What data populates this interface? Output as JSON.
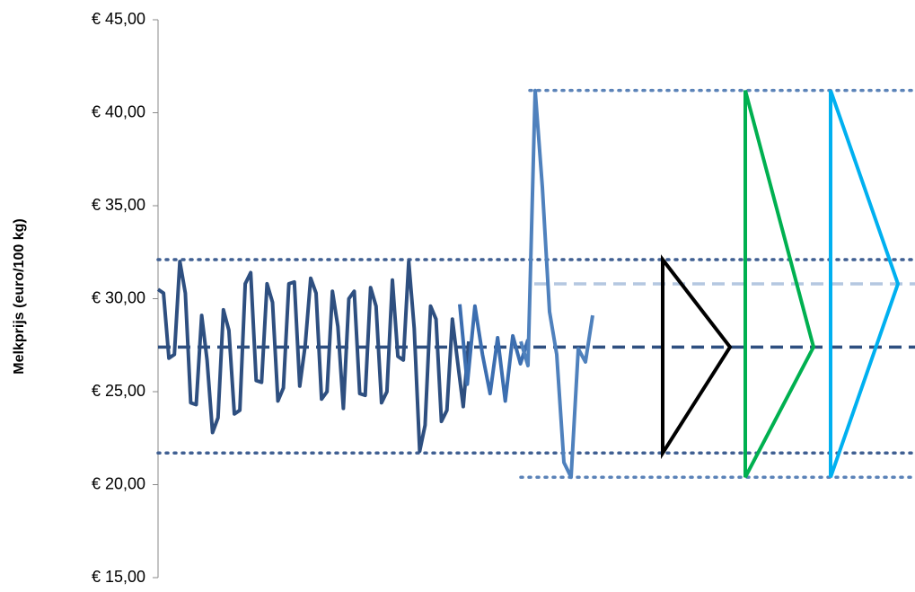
{
  "chart_data": {
    "type": "line",
    "y_label": "Melkprijs (euro/100 kg)",
    "ylim": [
      15,
      45
    ],
    "yticks": [
      {
        "value": 15,
        "label": "€ 15,00"
      },
      {
        "value": 20,
        "label": "€ 20,00"
      },
      {
        "value": 25,
        "label": "€ 25,00"
      },
      {
        "value": 30,
        "label": "€ 30,00"
      },
      {
        "value": 35,
        "label": "€ 35,00"
      },
      {
        "value": 40,
        "label": "€ 40,00"
      },
      {
        "value": 45,
        "label": "€ 45,00"
      }
    ],
    "series": [
      {
        "color": "#2e4f80",
        "values": [
          30.5,
          30.3,
          26.8,
          27.0,
          32.0,
          30.3,
          24.4,
          24.3,
          29.1,
          26.7,
          22.8,
          23.6,
          29.4,
          28.3,
          23.8,
          24.0,
          30.8,
          31.4,
          25.6,
          25.5,
          30.8,
          29.8,
          24.5,
          25.2,
          30.8,
          30.9,
          25.3,
          27.5,
          31.1,
          30.3,
          24.6,
          25.0,
          30.4,
          28.5,
          24.1,
          30.0,
          30.4,
          24.9,
          24.8,
          30.6,
          29.6,
          24.4,
          25.0,
          31.0,
          26.9,
          26.7,
          32.0,
          28.4,
          21.8,
          23.2,
          29.6,
          28.9,
          23.4,
          24.0,
          28.9,
          26.5,
          24.2,
          27.7
        ]
      },
      {
        "color": "#3c6eb0",
        "values": [
          29.7,
          25.4,
          29.6,
          27.0,
          24.9,
          27.9,
          24.5,
          28.0,
          26.5,
          27.8
        ]
      },
      {
        "color": "#4f81bd",
        "values": [
          27.7,
          26.4,
          41.2,
          36.0,
          29.3,
          27.0,
          21.2,
          20.4,
          27.3,
          26.6,
          29.1
        ]
      }
    ],
    "reference_lines": [
      {
        "value": 32.1,
        "color": "#3f5f92",
        "style": "dotted"
      },
      {
        "value": 27.4,
        "color": "#2e4f80",
        "style": "dashed"
      },
      {
        "value": 21.7,
        "color": "#3f5f92",
        "style": "dotted"
      },
      {
        "value": 41.2,
        "color": "#5b83b8",
        "style": "dotted"
      },
      {
        "value": 20.4,
        "color": "#5b83b8",
        "style": "dotted"
      },
      {
        "value": 30.8,
        "color": "#b4c7e0",
        "style": "dashed"
      }
    ],
    "triangles": [
      {
        "color": "#000000",
        "values": [
          32.1,
          27.4,
          21.7
        ]
      },
      {
        "color": "#00b050",
        "values": [
          41.2,
          27.4,
          20.4
        ]
      },
      {
        "color": "#00b0f0",
        "values": [
          41.2,
          30.8,
          20.4
        ]
      }
    ]
  }
}
